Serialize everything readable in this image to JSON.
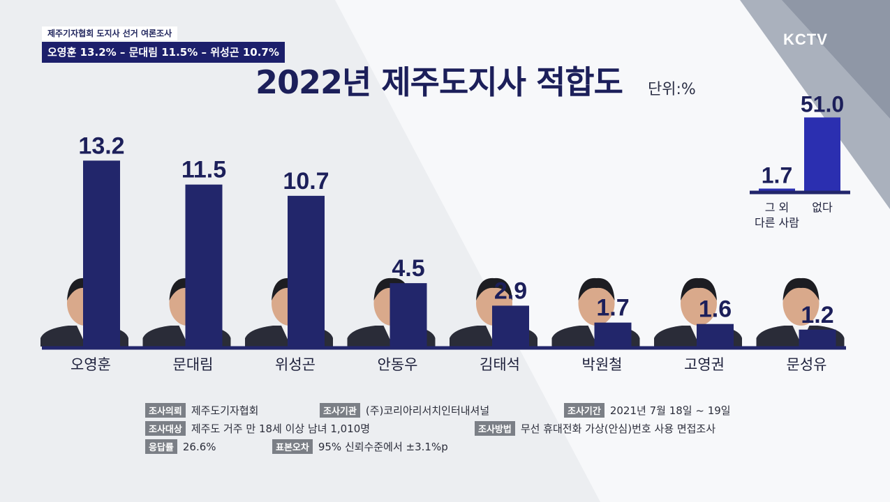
{
  "header": {
    "source_line": "제주기자협회 도지사 선거 여론조사",
    "summary_line": "오영훈 13.2% – 문대림 11.5% – 위성곤 10.7%",
    "logo": "KCTV"
  },
  "title": "2022년 제주도지사 적합도",
  "unit": "단위:%",
  "chart_data": [
    {
      "type": "bar",
      "categories": [
        "오영훈",
        "문대림",
        "위성곤",
        "안동우",
        "김태석",
        "박원철",
        "고영권",
        "문성유"
      ],
      "values": [
        13.2,
        11.5,
        10.7,
        4.5,
        2.9,
        1.7,
        1.6,
        1.2
      ],
      "value_labels": [
        "13.2",
        "11.5",
        "10.7",
        "4.5",
        "2.9",
        "1.7",
        "1.6",
        "1.2"
      ],
      "bar_color": "#22266b"
    },
    {
      "type": "bar",
      "categories": [
        "그 외\n다른 사람",
        "없다"
      ],
      "values": [
        1.7,
        51.0
      ],
      "value_labels": [
        "1.7",
        "51.0"
      ],
      "bar_color": "#2b2fb0"
    }
  ],
  "survey_info": {
    "client": {
      "tag": "조사의뢰",
      "value": "제주도기자협회"
    },
    "agency": {
      "tag": "조사기관",
      "value": "(주)코리아리서치인터내셔널"
    },
    "period": {
      "tag": "조사기간",
      "value": "2021년 7월 18일 ~ 19일"
    },
    "target": {
      "tag": "조사대상",
      "value": "제주도 거주 만 18세 이상 남녀 1,010명"
    },
    "method": {
      "tag": "조사방법",
      "value": "무선 휴대전화 가상(안심)번호 사용 면접조사"
    },
    "response": {
      "tag": "응답률",
      "value": "26.6%"
    },
    "error": {
      "tag": "표본오차",
      "value": "95% 신뢰수준에서 ±3.1%p"
    }
  }
}
